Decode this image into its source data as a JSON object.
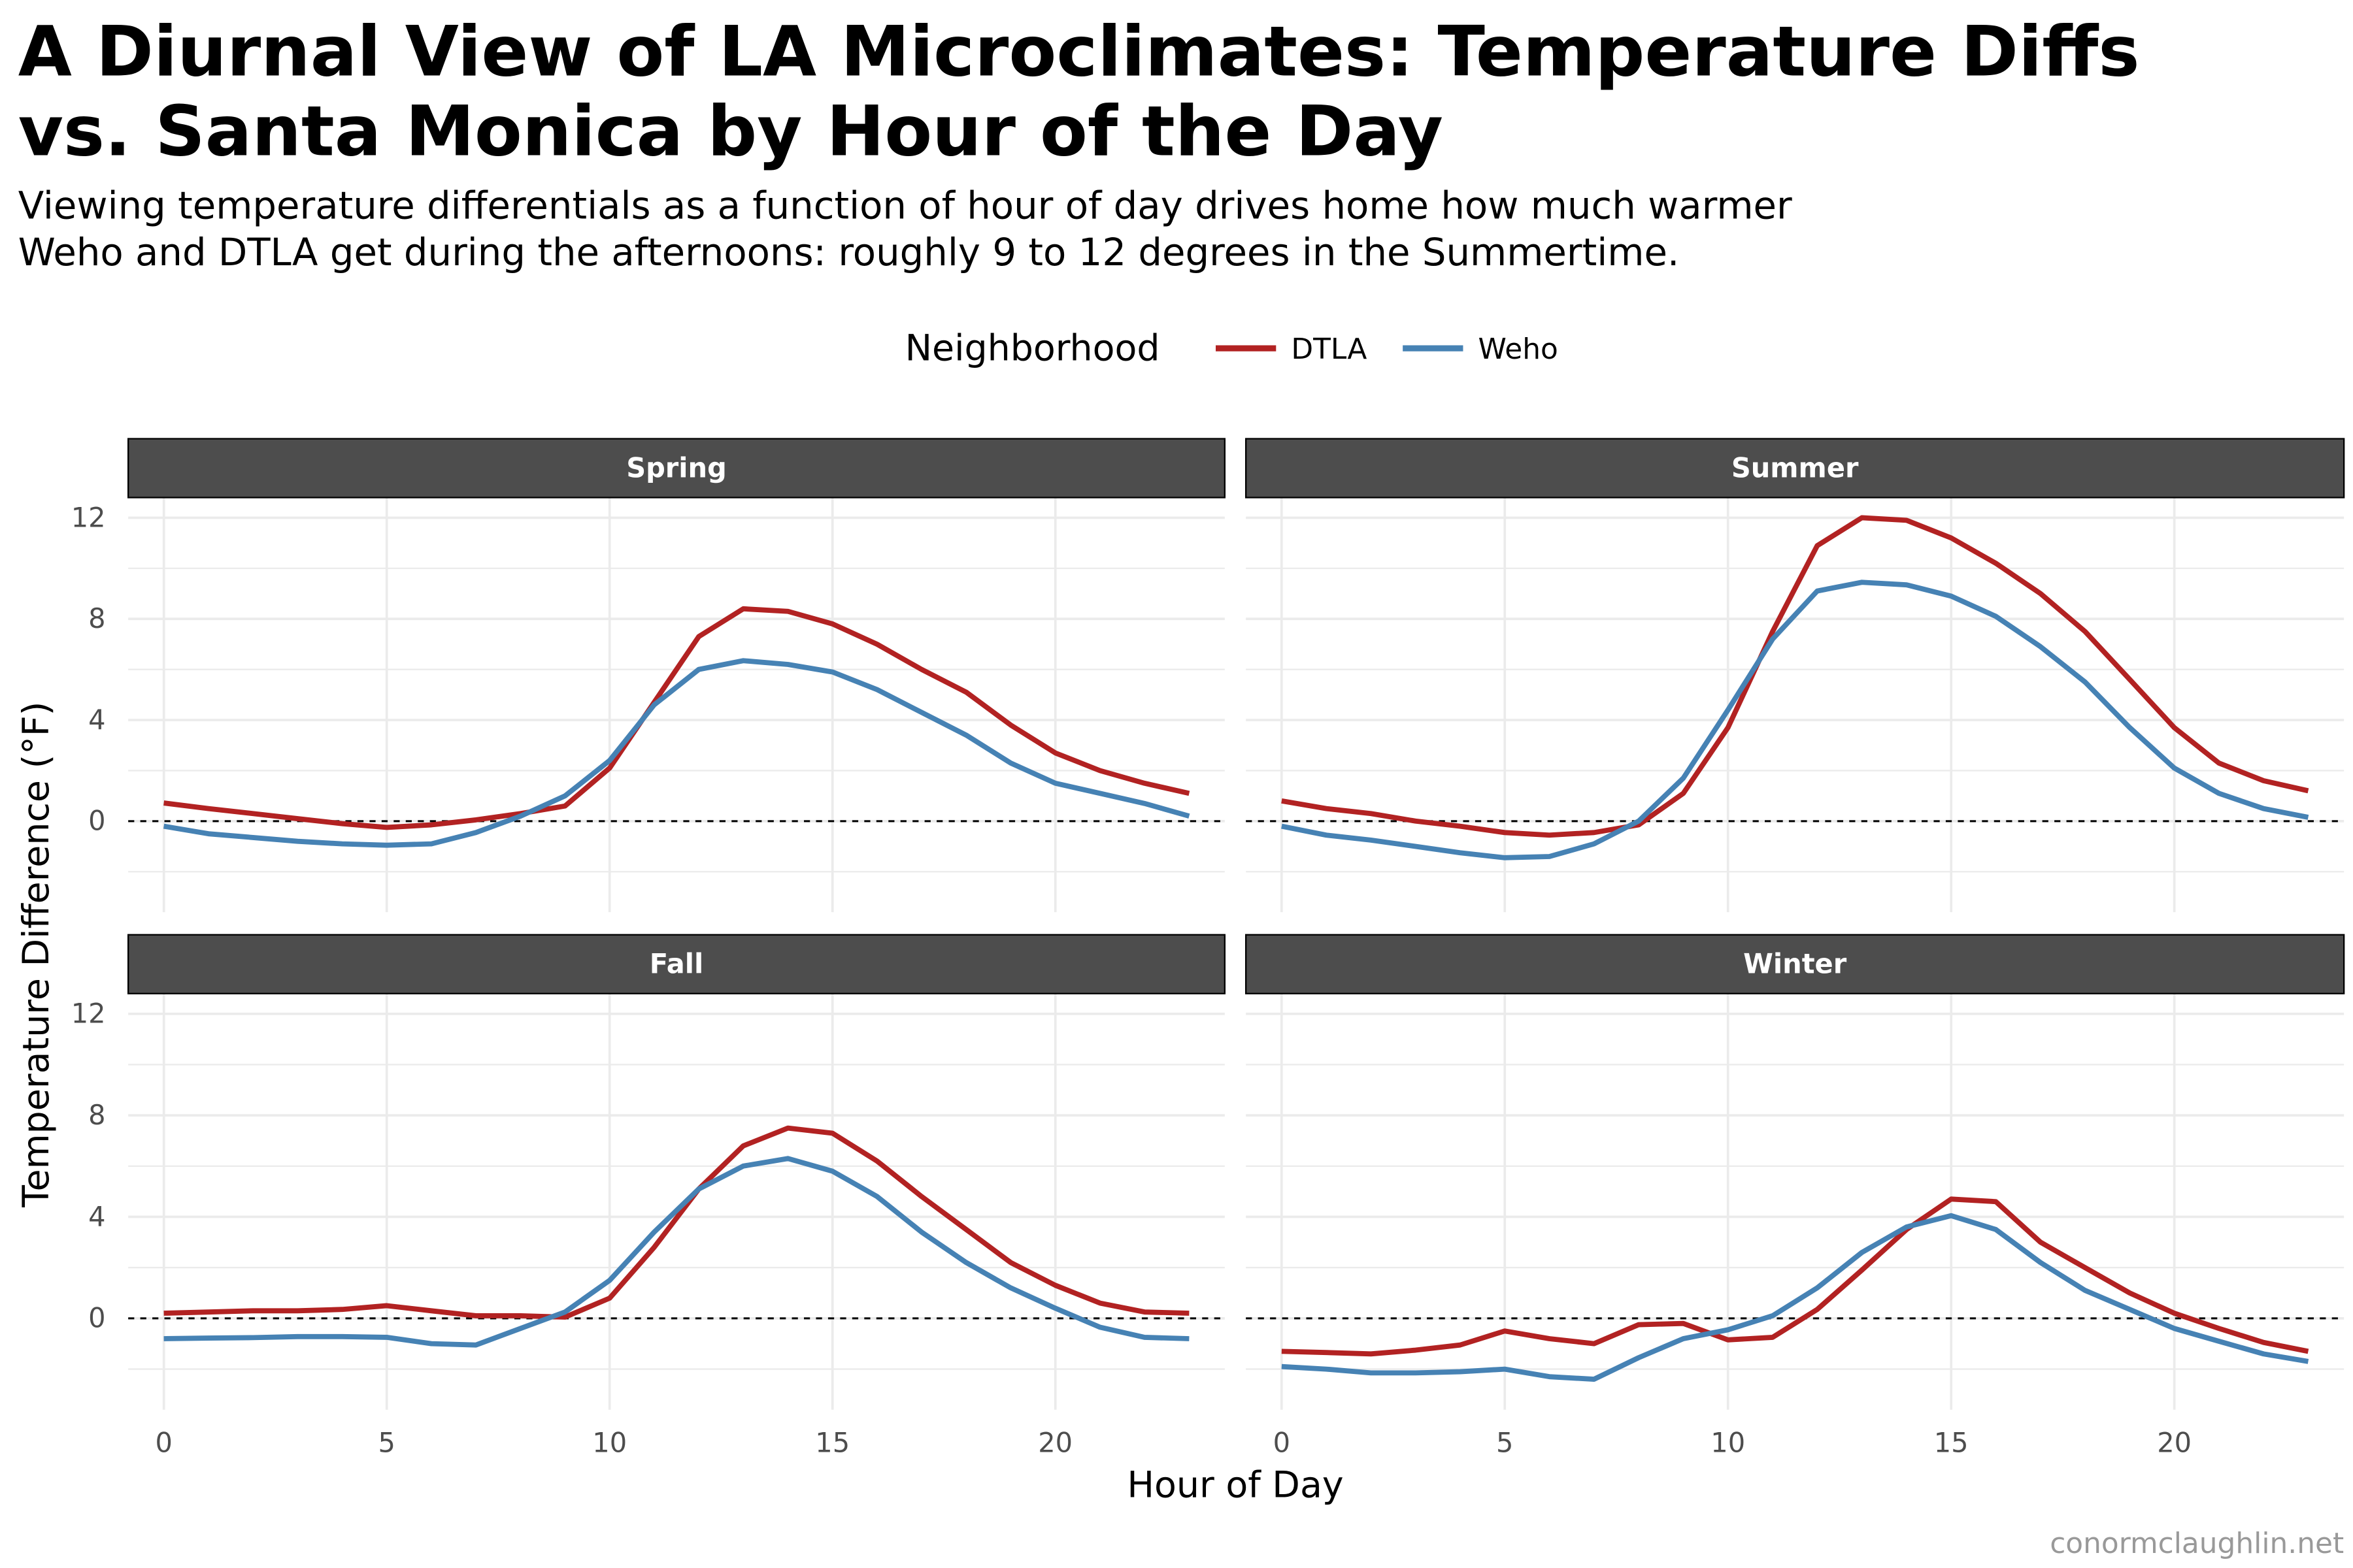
{
  "title_lines": [
    "A Diurnal View of LA Microclimates: Temperature Diffs",
    "vs. Santa Monica by Hour of the Day"
  ],
  "subtitle_lines": [
    "Viewing temperature differentials as a function of hour of day drives home how much warmer",
    "Weho and DTLA get during the afternoons: roughly 9 to 12 degrees in the Summertime."
  ],
  "caption": "conormclaughlin.net",
  "colors": {
    "DTLA": "#b22222",
    "Weho": "#4682b4",
    "strip": "#4d4d4d",
    "grid": "#ebebeb"
  },
  "chart_data": {
    "type": "line",
    "facets": [
      "Spring",
      "Summer",
      "Fall",
      "Winter"
    ],
    "xlabel": "Hour of Day",
    "ylabel": "Temperature Difference (°F)",
    "x_ticks": [
      0,
      5,
      10,
      15,
      20
    ],
    "y_ticks": [
      0,
      4,
      8,
      12
    ],
    "xlim": [
      -0.8,
      23.8
    ],
    "ylim": [
      -3.6,
      12.8
    ],
    "reference_line": 0,
    "legend": {
      "title": "Neighborhood",
      "position": "top",
      "entries": [
        "DTLA",
        "Weho"
      ]
    },
    "x": [
      0,
      1,
      2,
      3,
      4,
      5,
      6,
      7,
      8,
      9,
      10,
      11,
      12,
      13,
      14,
      15,
      16,
      17,
      18,
      19,
      20,
      21,
      22,
      23
    ],
    "panels": [
      {
        "facet": "Spring",
        "series": [
          {
            "name": "DTLA",
            "values": [
              0.72,
              0.5,
              0.3,
              0.1,
              -0.1,
              -0.25,
              -0.15,
              0.05,
              0.3,
              0.6,
              2.1,
              4.7,
              7.3,
              8.4,
              8.3,
              7.8,
              7.0,
              6.0,
              5.1,
              3.8,
              2.7,
              2.0,
              1.5,
              1.1
            ]
          },
          {
            "name": "Weho",
            "values": [
              -0.2,
              -0.5,
              -0.65,
              -0.8,
              -0.9,
              -0.95,
              -0.9,
              -0.45,
              0.2,
              1.0,
              2.4,
              4.6,
              6.0,
              6.35,
              6.2,
              5.9,
              5.2,
              4.3,
              3.4,
              2.3,
              1.5,
              1.1,
              0.7,
              0.2
            ]
          }
        ]
      },
      {
        "facet": "Summer",
        "series": [
          {
            "name": "DTLA",
            "values": [
              0.8,
              0.5,
              0.3,
              0.0,
              -0.2,
              -0.45,
              -0.55,
              -0.45,
              -0.15,
              1.1,
              3.7,
              7.5,
              10.9,
              12.0,
              11.9,
              11.2,
              10.2,
              9.0,
              7.5,
              5.6,
              3.7,
              2.3,
              1.6,
              1.2
            ]
          },
          {
            "name": "Weho",
            "values": [
              -0.2,
              -0.55,
              -0.75,
              -1.0,
              -1.25,
              -1.45,
              -1.4,
              -0.9,
              0.0,
              1.7,
              4.4,
              7.2,
              9.1,
              9.45,
              9.35,
              8.9,
              8.1,
              6.9,
              5.5,
              3.7,
              2.1,
              1.1,
              0.5,
              0.15
            ]
          }
        ]
      },
      {
        "facet": "Fall",
        "series": [
          {
            "name": "DTLA",
            "values": [
              0.2,
              0.25,
              0.3,
              0.3,
              0.35,
              0.5,
              0.3,
              0.1,
              0.1,
              0.05,
              0.8,
              2.8,
              5.1,
              6.8,
              7.5,
              7.3,
              6.2,
              4.8,
              3.5,
              2.2,
              1.3,
              0.6,
              0.25,
              0.2
            ]
          },
          {
            "name": "Weho",
            "values": [
              -0.8,
              -0.78,
              -0.76,
              -0.72,
              -0.72,
              -0.75,
              -1.0,
              -1.05,
              -0.4,
              0.25,
              1.5,
              3.4,
              5.1,
              6.0,
              6.3,
              5.8,
              4.8,
              3.4,
              2.2,
              1.2,
              0.4,
              -0.35,
              -0.75,
              -0.8
            ]
          }
        ]
      },
      {
        "facet": "Winter",
        "series": [
          {
            "name": "DTLA",
            "values": [
              -1.3,
              -1.35,
              -1.4,
              -1.25,
              -1.05,
              -0.5,
              -0.8,
              -1.0,
              -0.25,
              -0.2,
              -0.85,
              -0.75,
              0.35,
              1.9,
              3.5,
              4.7,
              4.6,
              3.0,
              2.0,
              1.0,
              0.2,
              -0.4,
              -0.95,
              -1.3
            ]
          },
          {
            "name": "Weho",
            "values": [
              -1.9,
              -2.0,
              -2.15,
              -2.15,
              -2.1,
              -2.0,
              -2.3,
              -2.4,
              -1.55,
              -0.8,
              -0.45,
              0.1,
              1.2,
              2.6,
              3.6,
              4.05,
              3.5,
              2.2,
              1.1,
              0.35,
              -0.4,
              -0.9,
              -1.4,
              -1.7
            ]
          }
        ]
      }
    ]
  }
}
